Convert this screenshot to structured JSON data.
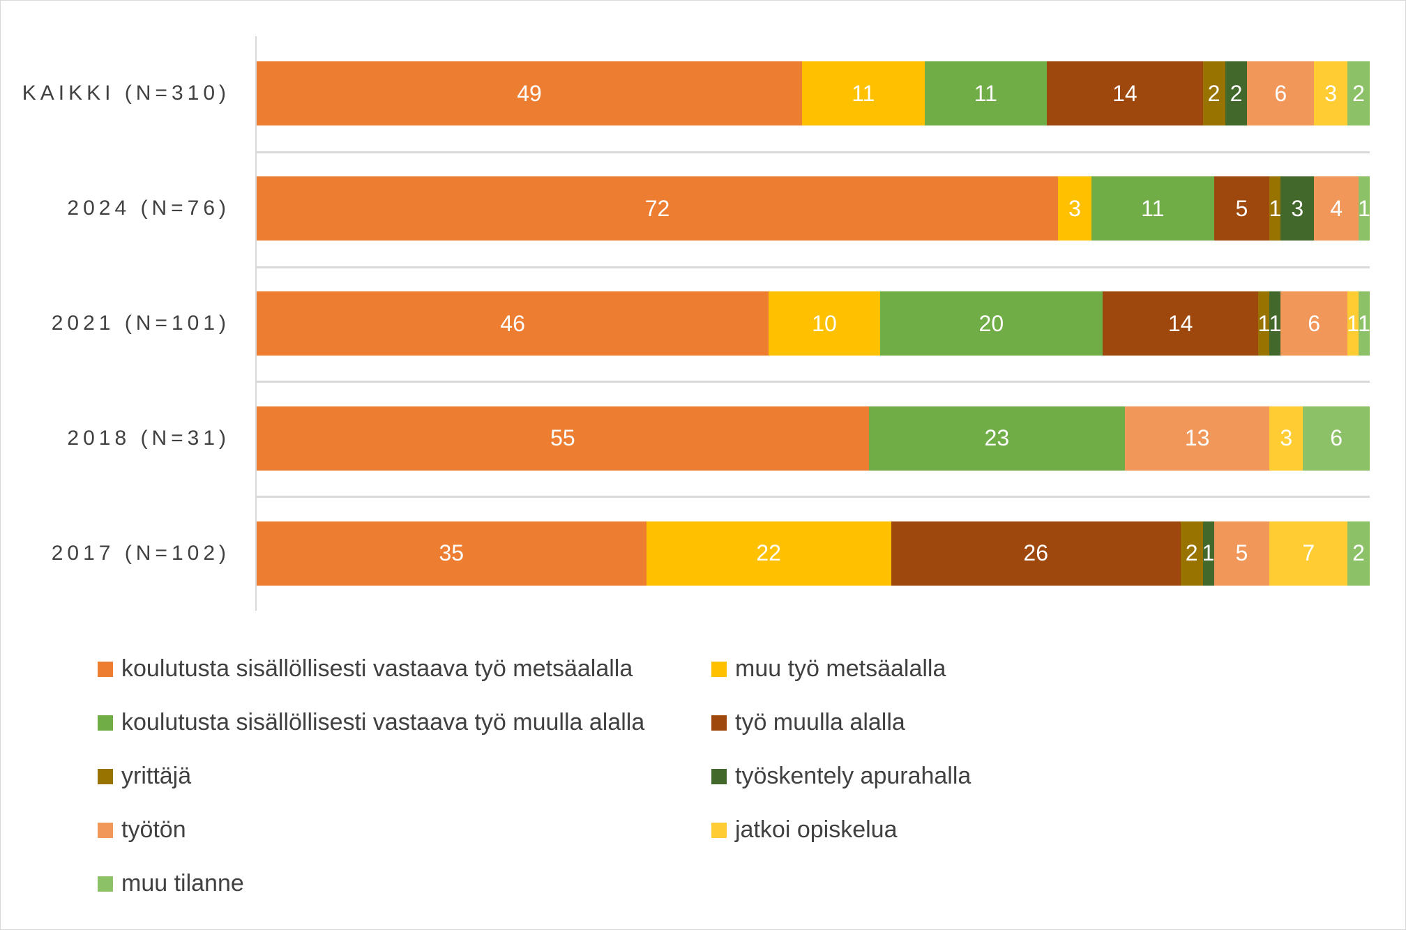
{
  "chart_data": {
    "type": "bar",
    "orientation": "horizontal",
    "stacked": true,
    "percent": true,
    "xlim": [
      0,
      100
    ],
    "categories": [
      "KAIKKI (N=310)",
      "2024 (N=76)",
      "2021 (N=101)",
      "2018 (N=31)",
      "2017 (N=102)"
    ],
    "series": [
      {
        "name": "koulutusta sisällöllisesti vastaava työ metsäalalla",
        "color": "#ED7D31",
        "values": [
          49,
          72,
          46,
          55,
          35
        ]
      },
      {
        "name": "muu työ metsäalalla",
        "color": "#FFC000",
        "values": [
          11,
          3,
          10,
          0,
          22
        ]
      },
      {
        "name": "koulutusta sisällöllisesti vastaava työ muulla alalla",
        "color": "#70AD47",
        "values": [
          11,
          11,
          20,
          23,
          0
        ]
      },
      {
        "name": "työ muulla alalla",
        "color": "#9E480E",
        "values": [
          14,
          5,
          14,
          0,
          26
        ]
      },
      {
        "name": "yrittäjä",
        "color": "#997300",
        "values": [
          2,
          1,
          1,
          0,
          2
        ]
      },
      {
        "name": "työskentely apurahalla",
        "color": "#43682B",
        "values": [
          2,
          3,
          1,
          0,
          1
        ]
      },
      {
        "name": "työtön",
        "color": "#F1975A",
        "values": [
          6,
          4,
          6,
          13,
          5
        ]
      },
      {
        "name": "jatkoi opiskelua",
        "color": "#FFCD33",
        "values": [
          3,
          0,
          1,
          3,
          7
        ]
      },
      {
        "name": "muu tilanne",
        "color": "#8CC168",
        "values": [
          2,
          1,
          1,
          6,
          2
        ]
      }
    ],
    "legend_position": "bottom",
    "data_labels": true
  }
}
